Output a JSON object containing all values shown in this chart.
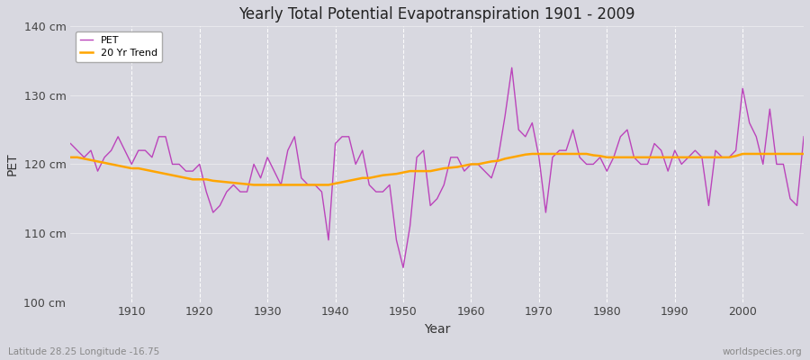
{
  "title": "Yearly Total Potential Evapotranspiration 1901 - 2009",
  "xlabel": "Year",
  "ylabel": "PET",
  "lat_lon_label": "Latitude 28.25 Longitude -16.75",
  "watermark": "worldspecies.org",
  "ylim": [
    100,
    140
  ],
  "yticks": [
    100,
    110,
    120,
    130,
    140
  ],
  "ytick_labels": [
    "100 cm",
    "110 cm",
    "120 cm",
    "130 cm",
    "140 cm"
  ],
  "xlim": [
    1901,
    2009
  ],
  "xticks": [
    1910,
    1920,
    1930,
    1940,
    1950,
    1960,
    1970,
    1980,
    1990,
    2000
  ],
  "bg_color": "#d8d8e0",
  "plot_bg_color": "#d8d8e0",
  "pet_color": "#bb44bb",
  "trend_color": "#ffa500",
  "pet_linewidth": 1.0,
  "trend_linewidth": 1.8,
  "years": [
    1901,
    1902,
    1903,
    1904,
    1905,
    1906,
    1907,
    1908,
    1909,
    1910,
    1911,
    1912,
    1913,
    1914,
    1915,
    1916,
    1917,
    1918,
    1919,
    1920,
    1921,
    1922,
    1923,
    1924,
    1925,
    1926,
    1927,
    1928,
    1929,
    1930,
    1931,
    1932,
    1933,
    1934,
    1935,
    1936,
    1937,
    1938,
    1939,
    1940,
    1941,
    1942,
    1943,
    1944,
    1945,
    1946,
    1947,
    1948,
    1949,
    1950,
    1951,
    1952,
    1953,
    1954,
    1955,
    1956,
    1957,
    1958,
    1959,
    1960,
    1961,
    1962,
    1963,
    1964,
    1965,
    1966,
    1967,
    1968,
    1969,
    1970,
    1971,
    1972,
    1973,
    1974,
    1975,
    1976,
    1977,
    1978,
    1979,
    1980,
    1981,
    1982,
    1983,
    1984,
    1985,
    1986,
    1987,
    1988,
    1989,
    1990,
    1991,
    1992,
    1993,
    1994,
    1995,
    1996,
    1997,
    1998,
    1999,
    2000,
    2001,
    2002,
    2003,
    2004,
    2005,
    2006,
    2007,
    2008,
    2009
  ],
  "pet_values": [
    123,
    122,
    121,
    122,
    119,
    121,
    122,
    124,
    122,
    120,
    122,
    122,
    121,
    124,
    124,
    120,
    120,
    119,
    119,
    120,
    116,
    113,
    114,
    116,
    117,
    116,
    116,
    120,
    118,
    121,
    119,
    117,
    122,
    124,
    118,
    117,
    117,
    116,
    109,
    123,
    124,
    124,
    120,
    122,
    117,
    116,
    116,
    117,
    109,
    105,
    111,
    121,
    122,
    114,
    115,
    117,
    121,
    121,
    119,
    120,
    120,
    119,
    118,
    121,
    127,
    134,
    125,
    124,
    126,
    121,
    113,
    121,
    122,
    122,
    125,
    121,
    120,
    120,
    121,
    119,
    121,
    124,
    125,
    121,
    120,
    120,
    123,
    122,
    119,
    122,
    120,
    121,
    122,
    121,
    114,
    122,
    121,
    121,
    122,
    131,
    126,
    124,
    120,
    128,
    120,
    120,
    115,
    114,
    124
  ],
  "trend_values": [
    121.0,
    121.0,
    120.8,
    120.6,
    120.4,
    120.2,
    120.0,
    119.8,
    119.6,
    119.4,
    119.4,
    119.2,
    119.0,
    118.8,
    118.6,
    118.4,
    118.2,
    118.0,
    117.8,
    117.8,
    117.8,
    117.6,
    117.5,
    117.4,
    117.3,
    117.2,
    117.1,
    117.0,
    117.0,
    117.0,
    117.0,
    117.0,
    117.0,
    117.0,
    117.0,
    117.0,
    117.0,
    117.0,
    117.0,
    117.2,
    117.4,
    117.6,
    117.8,
    118.0,
    118.0,
    118.2,
    118.4,
    118.5,
    118.6,
    118.8,
    119.0,
    119.0,
    119.0,
    119.0,
    119.2,
    119.4,
    119.5,
    119.6,
    119.8,
    120.0,
    120.0,
    120.2,
    120.4,
    120.5,
    120.8,
    121.0,
    121.2,
    121.4,
    121.5,
    121.5,
    121.5,
    121.5,
    121.5,
    121.5,
    121.5,
    121.5,
    121.5,
    121.3,
    121.2,
    121.0,
    121.0,
    121.0,
    121.0,
    121.0,
    121.0,
    121.0,
    121.0,
    121.0,
    121.0,
    121.0,
    121.0,
    121.0,
    121.0,
    121.0,
    121.0,
    121.0,
    121.0,
    121.0,
    121.2,
    121.5,
    121.5,
    121.5,
    121.5,
    121.5,
    121.5,
    121.5,
    121.5,
    121.5,
    121.5
  ]
}
